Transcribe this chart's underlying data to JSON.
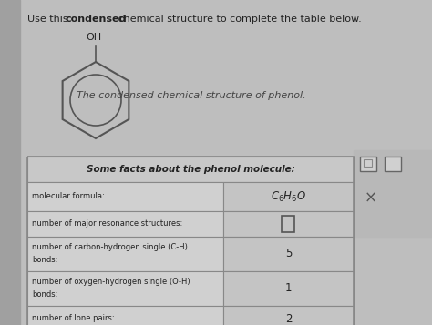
{
  "bg_color": "#bebebe",
  "left_stripe_color": "#a0a0a0",
  "title_parts": [
    "Use this ",
    "condensed",
    " chemical structure to complete the table below."
  ],
  "oh_label": "OH",
  "phenol_caption": "The condensed chemical structure of phenol.",
  "table_header": "Some facts about the phenol molecule:",
  "rows": [
    {
      "label": "molecular formula:",
      "value": "C_6H_6O",
      "is_formula": true
    },
    {
      "label": "number of major resonance structures:",
      "value": "",
      "is_box": true
    },
    {
      "label": "number of carbon-hydrogen single (C-H)\nbonds:",
      "value": "5"
    },
    {
      "label": "number of oxygen-hydrogen single (O-H)\nbonds:",
      "value": "1"
    },
    {
      "label": "number of lone pairs:",
      "value": "2"
    }
  ],
  "font_color": "#222222",
  "table_bg": "#d8d8d8",
  "header_bg": "#c8c8c8",
  "left_cell_bg": "#d0d0d0",
  "right_cell_bg": "#c4c4c4",
  "ring_color": "#555555",
  "chegg_panel_color": "#b0b0b0"
}
